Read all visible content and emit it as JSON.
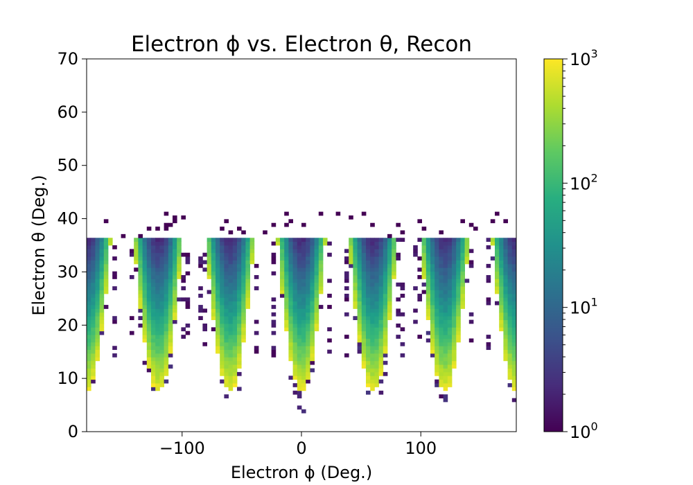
{
  "chart_data": {
    "type": "heatmap",
    "title": "Electron ϕ vs. Electron θ, Recon",
    "xlabel": "Electron ϕ (Deg.)",
    "ylabel": "Electron θ (Deg.)",
    "xlim": [
      -180,
      180
    ],
    "ylim": [
      0,
      70
    ],
    "x_ticks": [
      -100,
      0,
      100
    ],
    "x_tick_labels": [
      "−100",
      "0",
      "100"
    ],
    "y_ticks": [
      0,
      10,
      20,
      30,
      40,
      50,
      60,
      70
    ],
    "y_tick_labels": [
      "0",
      "10",
      "20",
      "30",
      "40",
      "50",
      "60",
      "70"
    ],
    "x_bins": 100,
    "y_bins": 100,
    "colormap": "viridis",
    "color_scale": "log",
    "color_range": [
      1,
      1000
    ],
    "colorbar_ticks": [
      {
        "base": "10",
        "exp": "0",
        "value": 1
      },
      {
        "base": "10",
        "exp": "1",
        "value": 10
      },
      {
        "base": "10",
        "exp": "2",
        "value": 100
      },
      {
        "base": "10",
        "exp": "3",
        "value": 1000
      }
    ],
    "sectors": [
      {
        "phi_center": -180,
        "theta_min": 7.5,
        "peak_count": 1000
      },
      {
        "phi_center": -120,
        "theta_min": 7.5,
        "peak_count": 1000
      },
      {
        "phi_center": -60,
        "theta_min": 7.5,
        "peak_count": 1000
      },
      {
        "phi_center": 0,
        "theta_min": 7.5,
        "peak_count": 1000
      },
      {
        "phi_center": 60,
        "theta_min": 7.5,
        "peak_count": 1000
      },
      {
        "phi_center": 120,
        "theta_min": 7.5,
        "peak_count": 1000
      },
      {
        "phi_center": 180,
        "theta_min": 7.5,
        "peak_count": 1000
      }
    ],
    "sector_half_width_deg": 20,
    "theta_upper_edge": 36.5
  }
}
